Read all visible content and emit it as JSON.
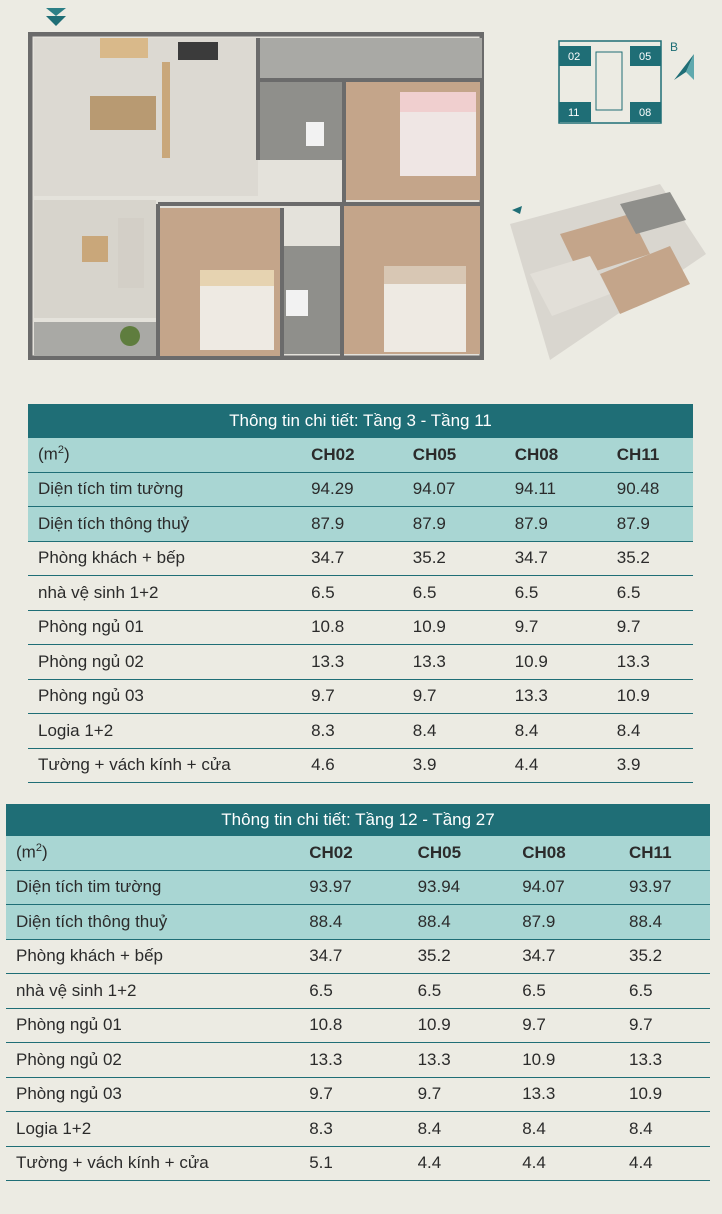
{
  "key_plan": {
    "units": [
      "02",
      "05",
      "11",
      "08"
    ],
    "block_label": "B"
  },
  "colors": {
    "accent": "#1f6e76",
    "row_shade": "#a9d6d3",
    "background": "#ecebe3"
  },
  "tables": [
    {
      "title": "Thông tin chi tiết: Tầng 3 - Tầng 11",
      "unit_label": "(m",
      "unit_sup": "2",
      "unit_close": ")",
      "columns": [
        "CH02",
        "CH05",
        "CH08",
        "CH11"
      ],
      "rows": [
        {
          "label": "Diện tích tim tường",
          "values": [
            "94.29",
            "94.07",
            "94.11",
            "90.48"
          ]
        },
        {
          "label": "Diện tích thông thuỷ",
          "values": [
            "87.9",
            "87.9",
            "87.9",
            "87.9"
          ]
        },
        {
          "label": "Phòng khách + bếp",
          "values": [
            "34.7",
            "35.2",
            "34.7",
            "35.2"
          ]
        },
        {
          "label": "nhà vệ sinh 1+2",
          "values": [
            "6.5",
            "6.5",
            "6.5",
            "6.5"
          ]
        },
        {
          "label": "Phòng ngủ 01",
          "values": [
            "10.8",
            "10.9",
            "9.7",
            "9.7"
          ]
        },
        {
          "label": "Phòng ngủ 02",
          "values": [
            "13.3",
            "13.3",
            "10.9",
            "13.3"
          ]
        },
        {
          "label": "Phòng ngủ 03",
          "values": [
            "9.7",
            "9.7",
            "13.3",
            "10.9"
          ]
        },
        {
          "label": "Logia 1+2",
          "values": [
            "8.3",
            "8.4",
            "8.4",
            "8.4"
          ]
        },
        {
          "label": "Tường + vách kính + cửa",
          "values": [
            "4.6",
            "3.9",
            "4.4",
            "3.9"
          ]
        }
      ]
    },
    {
      "title": "Thông tin chi tiết: Tầng 12 - Tầng 27",
      "unit_label": "(m",
      "unit_sup": "2",
      "unit_close": ")",
      "columns": [
        "CH02",
        "CH05",
        "CH08",
        "CH11"
      ],
      "rows": [
        {
          "label": "Diện tích tim tường",
          "values": [
            "93.97",
            "93.94",
            "94.07",
            "93.97"
          ]
        },
        {
          "label": "Diện tích thông thuỷ",
          "values": [
            "88.4",
            "88.4",
            "87.9",
            "88.4"
          ]
        },
        {
          "label": "Phòng khách + bếp",
          "values": [
            "34.7",
            "35.2",
            "34.7",
            "35.2"
          ]
        },
        {
          "label": "nhà vệ sinh 1+2",
          "values": [
            "6.5",
            "6.5",
            "6.5",
            "6.5"
          ]
        },
        {
          "label": "Phòng ngủ 01",
          "values": [
            "10.8",
            "10.9",
            "9.7",
            "9.7"
          ]
        },
        {
          "label": "Phòng ngủ 02",
          "values": [
            "13.3",
            "13.3",
            "10.9",
            "13.3"
          ]
        },
        {
          "label": "Phòng ngủ 03",
          "values": [
            "9.7",
            "9.7",
            "13.3",
            "10.9"
          ]
        },
        {
          "label": "Logia 1+2",
          "values": [
            "8.3",
            "8.4",
            "8.4",
            "8.4"
          ]
        },
        {
          "label": "Tường + vách kính + cửa",
          "values": [
            "5.1",
            "4.4",
            "4.4",
            "4.4"
          ]
        }
      ]
    }
  ]
}
